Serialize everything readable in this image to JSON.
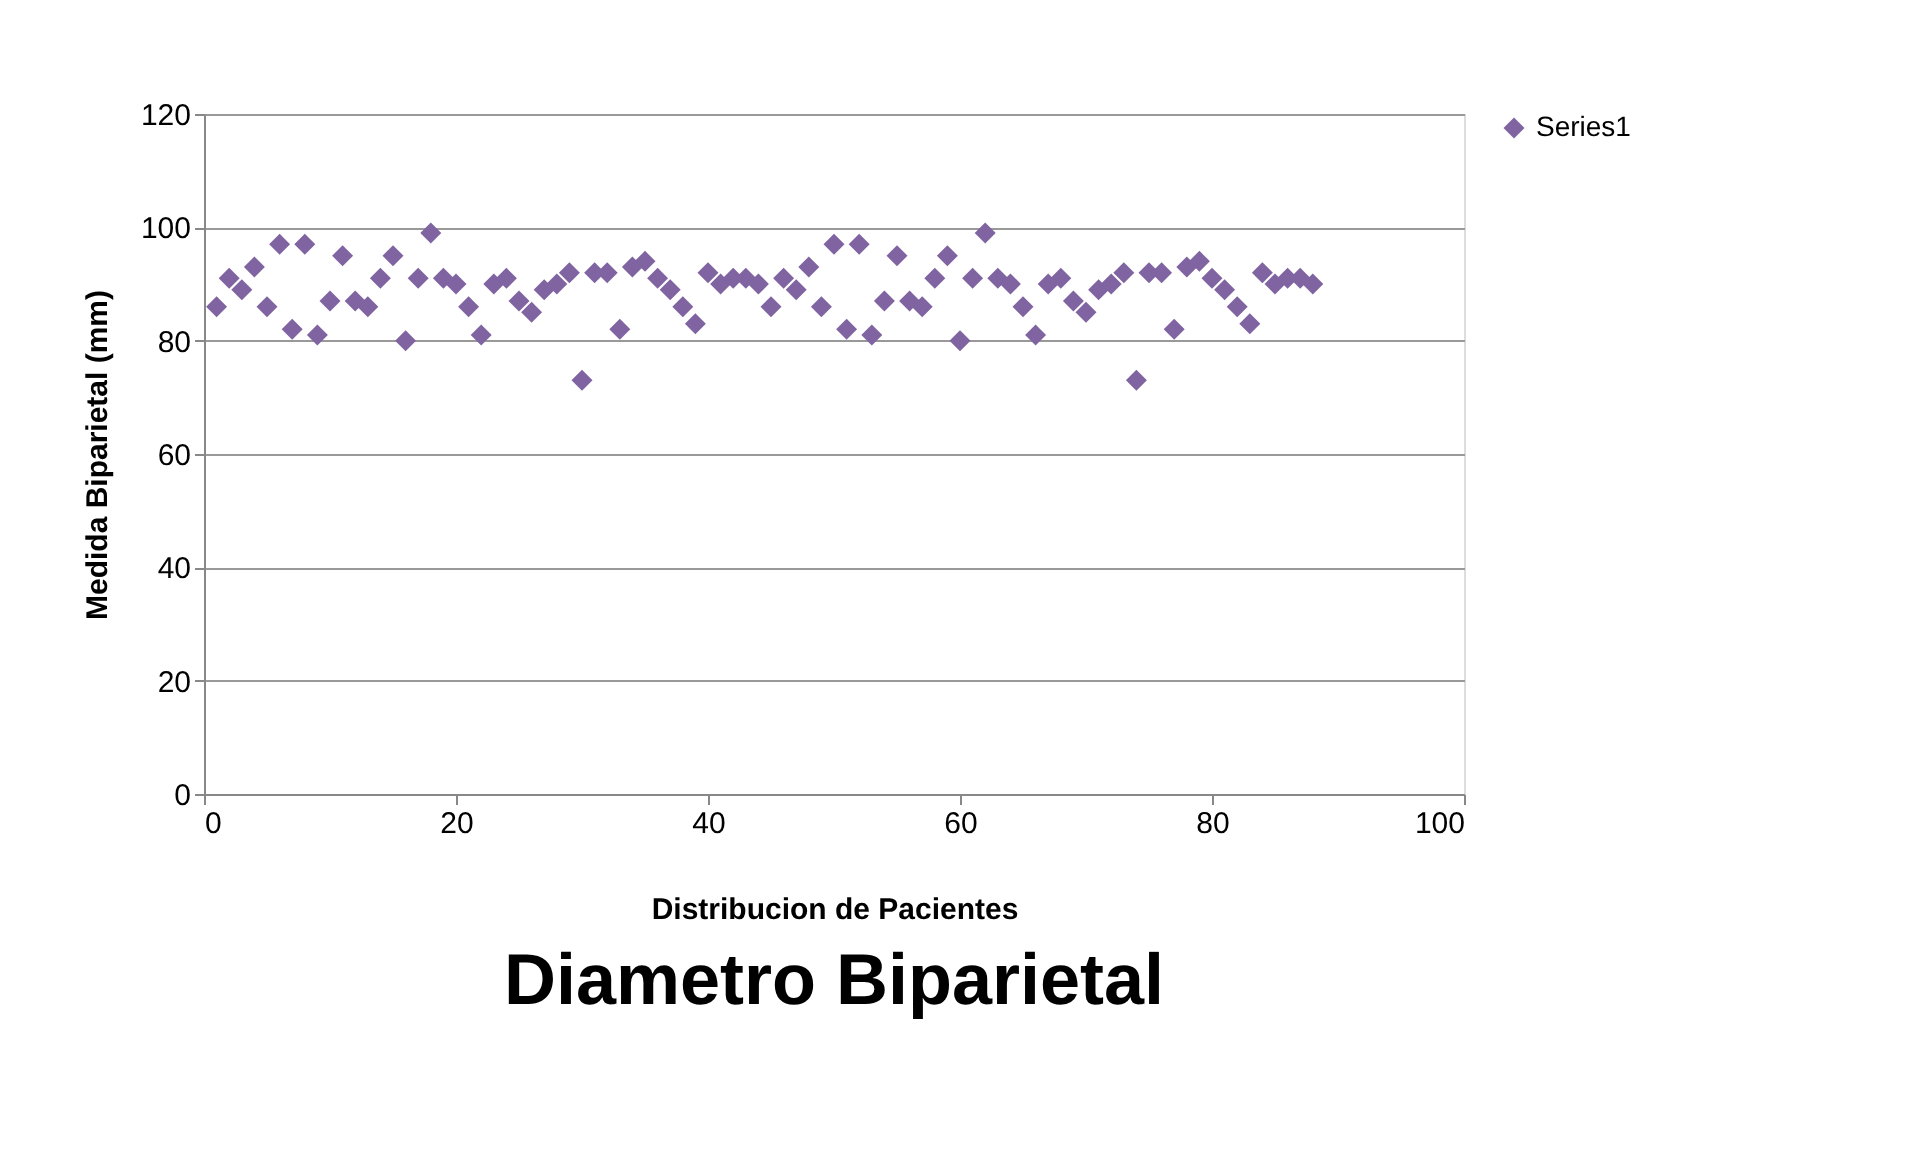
{
  "chart_data": {
    "type": "scatter",
    "title": "Diametro Biparietal",
    "xlabel": "Distribucion de Pacientes",
    "ylabel": "Medida Biparietal (mm)",
    "x": [
      1,
      2,
      3,
      4,
      5,
      6,
      7,
      8,
      9,
      10,
      11,
      12,
      13,
      14,
      15,
      16,
      17,
      18,
      19,
      20,
      21,
      22,
      23,
      24,
      25,
      26,
      27,
      28,
      29,
      30,
      31,
      32,
      33,
      34,
      35,
      36,
      37,
      38,
      39,
      40,
      41,
      42,
      43,
      44,
      45,
      46,
      47,
      48,
      49,
      50,
      51,
      52,
      53,
      54,
      55,
      56,
      57,
      58,
      59,
      60,
      61,
      62,
      63,
      64,
      65,
      66,
      67,
      68,
      69,
      70,
      71,
      72,
      73,
      74,
      75,
      76,
      77,
      78,
      79,
      80,
      81,
      82,
      83,
      84,
      85,
      86,
      87,
      88
    ],
    "series": [
      {
        "name": "Series1",
        "color": "#8064a2",
        "values": [
          86,
          91,
          89,
          93,
          86,
          97,
          82,
          97,
          81,
          87,
          95,
          87,
          86,
          91,
          95,
          80,
          91,
          99,
          91,
          90,
          86,
          81,
          90,
          91,
          87,
          85,
          89,
          90,
          92,
          73,
          92,
          92,
          82,
          93,
          94,
          91,
          89,
          86,
          83,
          92,
          90,
          91,
          91,
          90,
          86,
          91,
          89,
          93,
          86,
          97,
          82,
          97,
          81,
          87,
          95,
          87,
          86,
          91,
          95,
          80,
          91,
          99,
          91,
          90,
          86,
          81,
          90,
          91,
          87,
          85,
          89,
          90,
          92,
          73,
          92,
          92,
          82,
          93,
          94,
          91,
          89,
          86,
          83,
          92,
          90,
          91,
          91,
          90
        ]
      }
    ],
    "xlim": [
      0,
      100
    ],
    "xticks": [
      0,
      20,
      40,
      60,
      80,
      100
    ],
    "ylim": [
      0,
      120
    ],
    "yticks": [
      0,
      20,
      40,
      60,
      80,
      100,
      120
    ],
    "grid": "y",
    "legend": "right",
    "marker": "diamond"
  }
}
